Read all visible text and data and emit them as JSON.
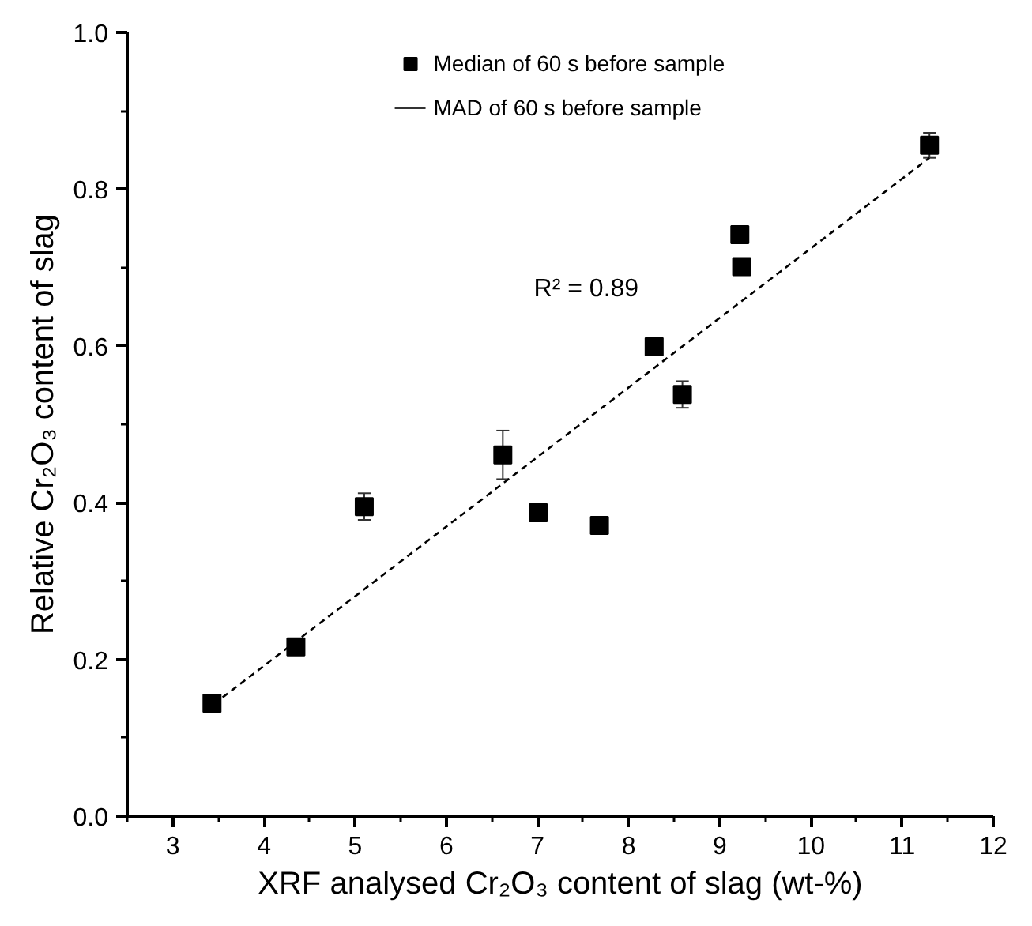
{
  "chart_data": {
    "type": "scatter",
    "xlabel": "XRF analysed Cr₂O₃ content of slag (wt-%)",
    "ylabel": "Relative Cr₂O₃ content of slag",
    "xlim": [
      2.5,
      12
    ],
    "ylim": [
      0,
      1
    ],
    "xticks": [
      {
        "value": 2.5,
        "label": null
      },
      3,
      {
        "value": 3.5,
        "label": null
      },
      4,
      {
        "value": 4.5,
        "label": null
      },
      5,
      {
        "value": 5.5,
        "label": null
      },
      6,
      {
        "value": 6.5,
        "label": null
      },
      7,
      {
        "value": 7.5,
        "label": null
      },
      8,
      {
        "value": 8.5,
        "label": null
      },
      9,
      {
        "value": 9.5,
        "label": null
      },
      10,
      {
        "value": 10.5,
        "label": null
      },
      11,
      {
        "value": 11.5,
        "label": null
      },
      12
    ],
    "yticks": [
      {
        "value": 0,
        "label": "0.0"
      },
      {
        "value": 0.1,
        "label": null
      },
      {
        "value": 0.2,
        "label": "0.2"
      },
      {
        "value": 0.3,
        "label": null
      },
      {
        "value": 0.4,
        "label": "0.4"
      },
      {
        "value": 0.5,
        "label": null
      },
      {
        "value": 0.6,
        "label": "0.6"
      },
      {
        "value": 0.7,
        "label": null
      },
      {
        "value": 0.8,
        "label": "0.8"
      },
      {
        "value": 0.9,
        "label": null
      },
      {
        "value": 1,
        "label": "1.0"
      }
    ],
    "series": [
      {
        "name": "Median of 60 s before sample",
        "color": "#000000",
        "marker": "square",
        "x": [
          3.43,
          4.35,
          5.1,
          6.62,
          7.01,
          7.68,
          8.28,
          8.59,
          9.22,
          9.24,
          11.3
        ],
        "values": [
          0.144,
          0.216,
          0.395,
          0.461,
          0.387,
          0.371,
          0.599,
          0.538,
          0.742,
          0.701,
          0.856
        ],
        "errors": [
          0.01,
          null,
          0.017,
          0.031,
          0.01,
          null,
          null,
          0.017,
          null,
          null,
          0.016
        ]
      },
      {
        "type": "line",
        "color": "#000000",
        "line_style": "dashed",
        "x": [
          3.45,
          11.3
        ],
        "values": [
          0.143,
          0.84
        ]
      }
    ],
    "annotations": [
      "MAD of 60 s before sample",
      "R² = 0.89"
    ],
    "legend": "top",
    "grid": false
  }
}
